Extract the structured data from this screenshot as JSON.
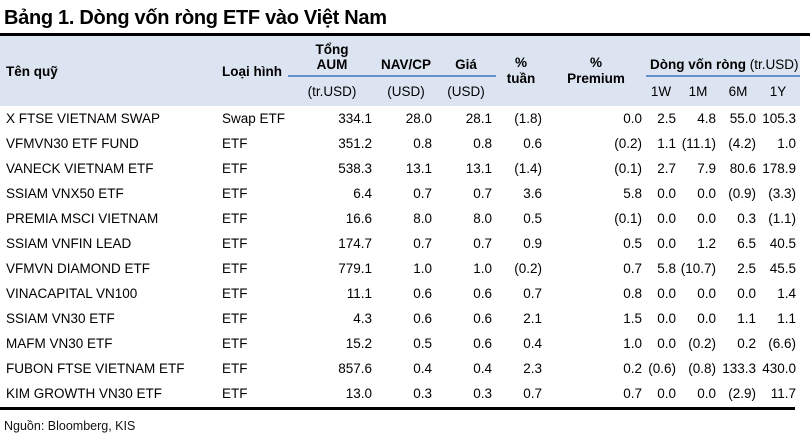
{
  "title": "Bảng 1. Dòng vốn ròng ETF vào Việt Nam",
  "source": "Nguồn: Bloomberg, KIS",
  "colors": {
    "header_bg": "#dbe4f0",
    "group_underline_blue": "#6591cd",
    "rule_black": "#000000"
  },
  "table": {
    "headers": {
      "fund": "Tên quỹ",
      "type": "Loại hình",
      "aum_line1": "Tổng",
      "aum_line2": "AUM",
      "aum_sub": "(tr.USD)",
      "nav": "NAV/CP",
      "nav_sub": "(USD)",
      "price": "Giá",
      "price_sub": "(USD)",
      "pct_week_line1": "%",
      "pct_week_line2": "tuần",
      "pct_premium_line1": "%",
      "pct_premium_line2": "Premium",
      "flows_group": "Dòng vốn ròng",
      "flows_group_unit": " (tr.USD)",
      "flow_1w": "1W",
      "flow_1m": "1M",
      "flow_6m": "6M",
      "flow_1y": "1Y"
    },
    "rows": [
      {
        "fund": "X FTSE VIETNAM SWAP",
        "type": "Swap ETF",
        "aum": "334.1",
        "nav": "28.0",
        "price": "28.1",
        "pct_week": "(1.8)",
        "pct_premium": "0.0",
        "w1": "2.5",
        "m1": "4.8",
        "m6": "55.0",
        "y1": "105.3"
      },
      {
        "fund": "VFMVN30 ETF FUND",
        "type": "ETF",
        "aum": "351.2",
        "nav": "0.8",
        "price": "0.8",
        "pct_week": "0.6",
        "pct_premium": "(0.2)",
        "w1": "1.1",
        "m1": "(11.1)",
        "m6": "(4.2)",
        "y1": "1.0"
      },
      {
        "fund": "VANECK VIETNAM ETF",
        "type": "ETF",
        "aum": "538.3",
        "nav": "13.1",
        "price": "13.1",
        "pct_week": "(1.4)",
        "pct_premium": "(0.1)",
        "w1": "2.7",
        "m1": "7.9",
        "m6": "80.6",
        "y1": "178.9"
      },
      {
        "fund": "SSIAM VNX50 ETF",
        "type": "ETF",
        "aum": "6.4",
        "nav": "0.7",
        "price": "0.7",
        "pct_week": "3.6",
        "pct_premium": "5.8",
        "w1": "0.0",
        "m1": "0.0",
        "m6": "(0.9)",
        "y1": "(3.3)"
      },
      {
        "fund": "PREMIA MSCI VIETNAM",
        "type": "ETF",
        "aum": "16.6",
        "nav": "8.0",
        "price": "8.0",
        "pct_week": "0.5",
        "pct_premium": "(0.1)",
        "w1": "0.0",
        "m1": "0.0",
        "m6": "0.3",
        "y1": "(1.1)"
      },
      {
        "fund": "SSIAM VNFIN LEAD",
        "type": "ETF",
        "aum": "174.7",
        "nav": "0.7",
        "price": "0.7",
        "pct_week": "0.9",
        "pct_premium": "0.5",
        "w1": "0.0",
        "m1": "1.2",
        "m6": "6.5",
        "y1": "40.5"
      },
      {
        "fund": "VFMVN DIAMOND ETF",
        "type": "ETF",
        "aum": "779.1",
        "nav": "1.0",
        "price": "1.0",
        "pct_week": "(0.2)",
        "pct_premium": "0.7",
        "w1": "5.8",
        "m1": "(10.7)",
        "m6": "2.5",
        "y1": "45.5"
      },
      {
        "fund": "VINACAPITAL VN100",
        "type": "ETF",
        "aum": "11.1",
        "nav": "0.6",
        "price": "0.6",
        "pct_week": "0.7",
        "pct_premium": "0.8",
        "w1": "0.0",
        "m1": "0.0",
        "m6": "0.0",
        "y1": "1.4"
      },
      {
        "fund": "SSIAM VN30 ETF",
        "type": "ETF",
        "aum": "4.3",
        "nav": "0.6",
        "price": "0.6",
        "pct_week": "2.1",
        "pct_premium": "1.5",
        "w1": "0.0",
        "m1": "0.0",
        "m6": "1.1",
        "y1": "1.1"
      },
      {
        "fund": "MAFM VN30 ETF",
        "type": "ETF",
        "aum": "15.2",
        "nav": "0.5",
        "price": "0.6",
        "pct_week": "0.4",
        "pct_premium": "1.0",
        "w1": "0.0",
        "m1": "(0.2)",
        "m6": "0.2",
        "y1": "(6.6)"
      },
      {
        "fund": "FUBON FTSE VIETNAM ETF",
        "type": "ETF",
        "aum": "857.6",
        "nav": "0.4",
        "price": "0.4",
        "pct_week": "2.3",
        "pct_premium": "0.2",
        "w1": "(0.6)",
        "m1": "(0.8)",
        "m6": "133.3",
        "y1": "430.0"
      },
      {
        "fund": "KIM GROWTH VN30 ETF",
        "type": "ETF",
        "aum": "13.0",
        "nav": "0.3",
        "price": "0.3",
        "pct_week": "0.7",
        "pct_premium": "0.7",
        "w1": "0.0",
        "m1": "0.0",
        "m6": "(2.9)",
        "y1": "11.7"
      }
    ]
  }
}
